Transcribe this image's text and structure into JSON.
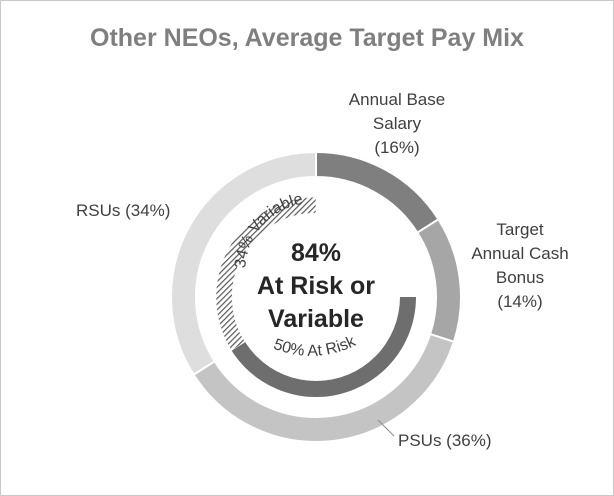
{
  "chart_data": {
    "type": "pie",
    "title": "Other NEOs, Average Target Pay Mix",
    "outer_ring": [
      {
        "name": "Annual Base Salary",
        "label_lines": [
          "Annual Base",
          "Salary",
          "(16%)"
        ],
        "value": 16,
        "color": "#7f7f7f"
      },
      {
        "name": "Target Annual Cash Bonus",
        "label_lines": [
          "Target",
          "Annual Cash",
          "Bonus",
          "(14%)"
        ],
        "value": 14,
        "color": "#a6a6a6"
      },
      {
        "name": "PSUs",
        "label_lines": [
          "PSUs (36%)"
        ],
        "value": 36,
        "color": "#c4c4c4"
      },
      {
        "name": "RSUs",
        "label_lines": [
          "RSUs (34%)"
        ],
        "value": 34,
        "color": "#dedede"
      }
    ],
    "inner_ring": [
      {
        "label": "50% At Risk",
        "value": 50,
        "fill": "solid",
        "color": "#6e6e6e"
      },
      {
        "label": "34% Variable",
        "value": 34,
        "fill": "hatched",
        "color": "#595959"
      }
    ],
    "center_text": [
      "84%",
      "At Risk or",
      "Variable"
    ]
  }
}
